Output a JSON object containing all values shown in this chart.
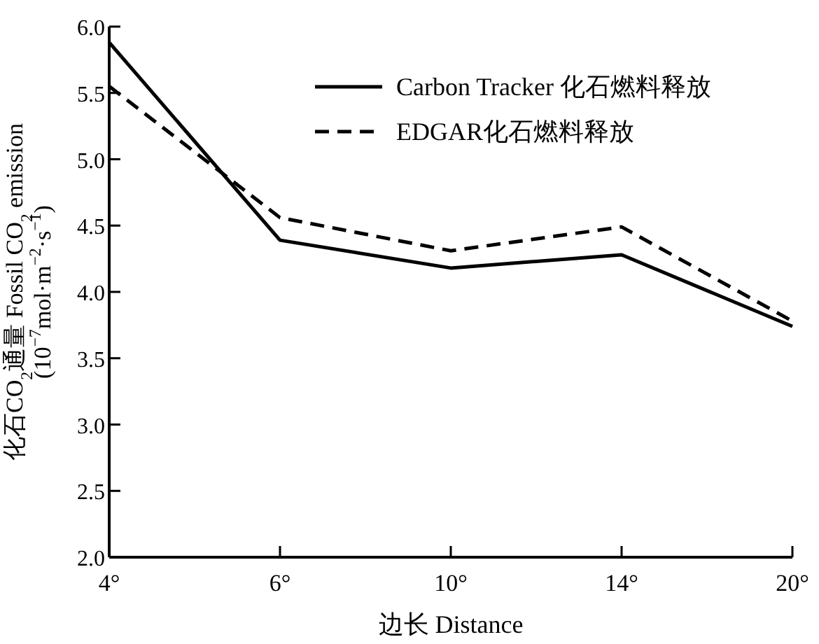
{
  "chart_data": {
    "type": "line",
    "xlabel": "边长 Distance",
    "ylabel": [
      "化石CO$_{2}$通量 Fossil CO$_{2}$ emission",
      "(10$^{−7}$mol·m$^{−2}$·s$^{−1}$)"
    ],
    "categories": [
      "4°",
      "6°",
      "10°",
      "14°",
      "20°"
    ],
    "series": [
      {
        "name": "Carbon Tracker 化石燃料释放",
        "color": "#000000",
        "line_style": "solid",
        "values": [
          5.88,
          4.39,
          4.18,
          4.28,
          3.74
        ]
      },
      {
        "name": "EDGAR化石燃料释放",
        "color": "#000000",
        "line_style": "dashed",
        "values": [
          5.55,
          4.56,
          4.31,
          4.49,
          3.78
        ]
      }
    ],
    "ylim": [
      2.0,
      6.0
    ],
    "yticks": [
      {
        "value": 2,
        "label": "2.0"
      },
      {
        "value": 2.5,
        "label": "2.5"
      },
      {
        "value": 3,
        "label": "3.0"
      },
      {
        "value": 3.5,
        "label": "3.5"
      },
      {
        "value": 4,
        "label": "4.0"
      },
      {
        "value": 4.5,
        "label": "4.5"
      },
      {
        "value": 5,
        "label": "5.0"
      },
      {
        "value": 5.5,
        "label": "5.5"
      },
      {
        "value": 6,
        "label": "6.0"
      }
    ],
    "legend": "top right",
    "grid": false
  }
}
